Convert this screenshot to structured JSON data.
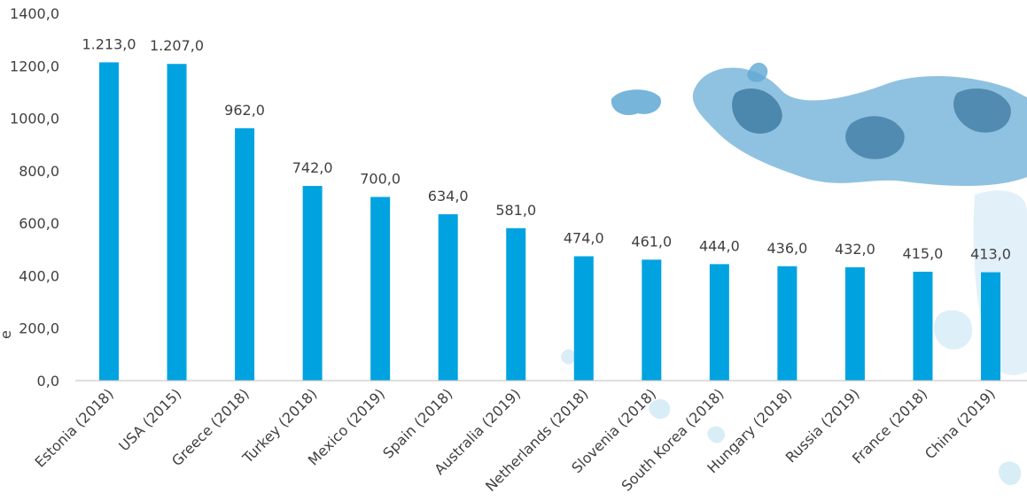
{
  "colors": {
    "bar": "#00A3E0",
    "axis": "#BFBFBF",
    "text": "#404040",
    "water_light": "#CFE8F5",
    "water_mid": "#5FA8D3",
    "water_dark": "#1F5F8B"
  },
  "chart_data": {
    "type": "bar",
    "title": "",
    "xlabel": "",
    "ylabel": "e",
    "ylim": [
      0,
      1400
    ],
    "yticks": [
      0,
      200,
      400,
      600,
      800,
      1000,
      1200,
      1400
    ],
    "ytick_labels": [
      "0,0",
      "200,0",
      "400,0",
      "600,0",
      "800,0",
      "1000,0",
      "1200,0",
      "1400,0"
    ],
    "grid": false,
    "legend": "none",
    "categories": [
      "Estonia (2018)",
      "USA (2015)",
      "Greece (2018)",
      "Turkey (2018)",
      "Mexico (2019)",
      "Spain (2018)",
      "Australia (2019)",
      "Netherlands (2018)",
      "Slovenia (2018)",
      "South Korea (2018)",
      "Hungary (2018)",
      "Russia (2019)",
      "France (2018)",
      "China (2019)"
    ],
    "values": [
      1213,
      1207,
      962,
      742,
      700,
      634,
      581,
      474,
      461,
      444,
      436,
      432,
      415,
      413
    ],
    "value_labels": [
      "1.213,0",
      "1.207,0",
      "962,0",
      "742,0",
      "700,0",
      "634,0",
      "581,0",
      "474,0",
      "461,0",
      "444,0",
      "436,0",
      "432,0",
      "415,0",
      "413,0"
    ]
  }
}
